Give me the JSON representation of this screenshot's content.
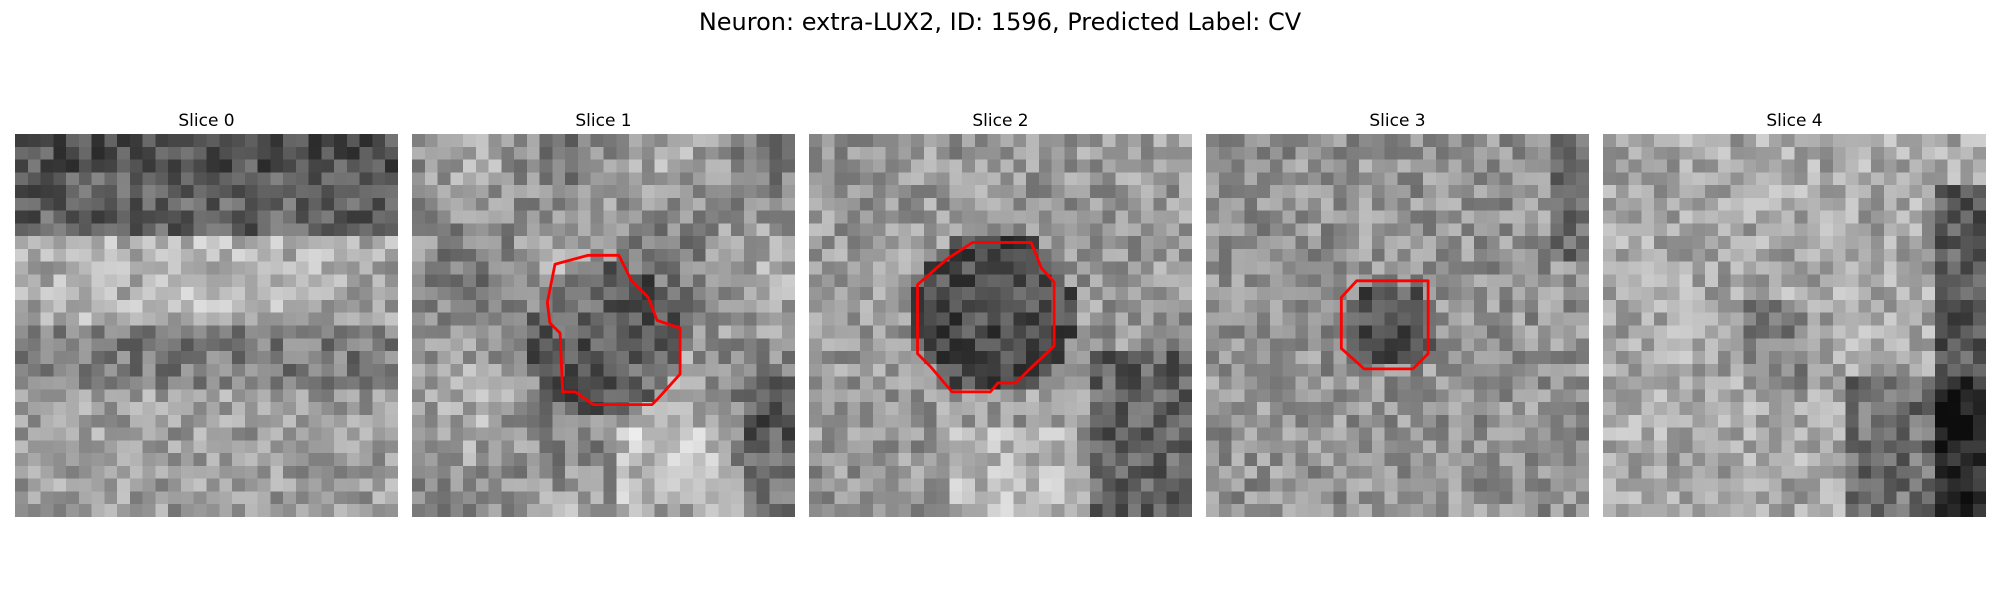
{
  "figure": {
    "title": "Neuron: extra-LUX2, ID: 1596, Predicted Label: CV"
  },
  "colors": {
    "contour": "#ff0000",
    "background": "#ffffff",
    "colormap": "grayscale"
  },
  "panels": [
    {
      "title": "Slice 0",
      "has_contour": false,
      "seed": 11,
      "dark_center": false
    },
    {
      "title": "Slice 1",
      "has_contour": true,
      "seed": 23,
      "dark_center": true
    },
    {
      "title": "Slice 2",
      "has_contour": true,
      "seed": 37,
      "dark_center": true
    },
    {
      "title": "Slice 3",
      "has_contour": true,
      "seed": 53,
      "dark_center": true
    },
    {
      "title": "Slice 4",
      "has_contour": false,
      "seed": 71,
      "dark_center": false
    }
  ]
}
